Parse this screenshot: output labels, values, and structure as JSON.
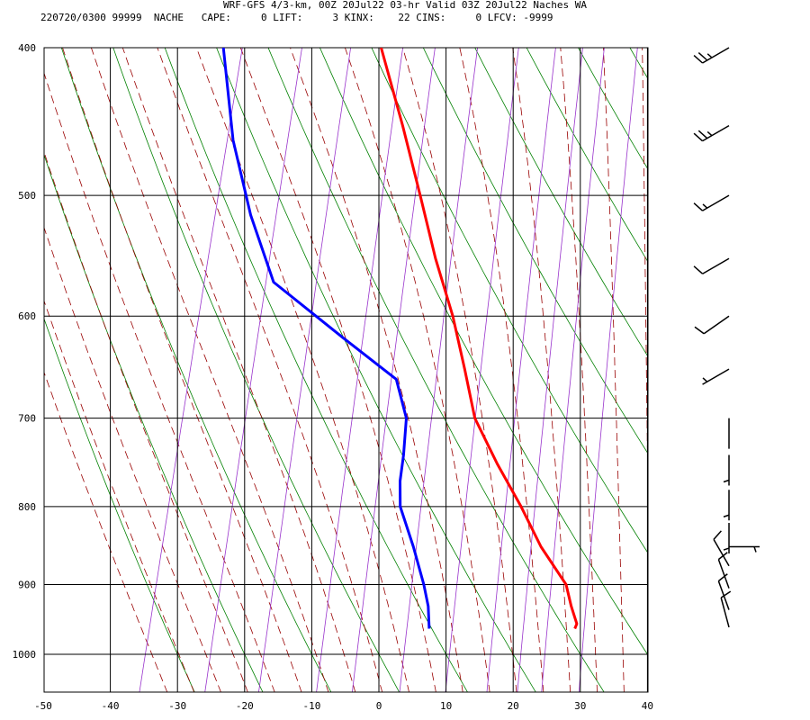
{
  "header": {
    "title": "WRF-GFS 4/3-km, 00Z 20Jul22 03-hr Valid 03Z 20Jul22 Naches WA",
    "info": "220720/0300 99999  NACHE   CAPE:     0 LIFT:     3 KINX:    22 CINS:     0 LFCV: -9999"
  },
  "colors": {
    "temperature": "#ff0000",
    "dewpoint": "#0000ff",
    "isotherm": "#000000",
    "isobar": "#000000",
    "dry_adiabat": "#008000",
    "moist_adiabat": "#990000",
    "mixing_ratio": "#9933cc",
    "wind_barb": "#000000"
  },
  "chart_data": {
    "type": "skew-t",
    "xlabel": "",
    "ylabel": "",
    "x_ticks": [
      -50,
      -40,
      -30,
      -20,
      -10,
      0,
      10,
      20,
      30,
      40
    ],
    "y_ticks": [
      400,
      500,
      600,
      700,
      800,
      900,
      1000
    ],
    "xlim": [
      -50,
      40
    ],
    "ylim": [
      1040,
      400
    ],
    "series": [
      {
        "key": "temperature",
        "points": [
          {
            "p": 962,
            "t": 28.2
          },
          {
            "p": 955,
            "t": 28.3
          },
          {
            "p": 930,
            "t": 26.8
          },
          {
            "p": 900,
            "t": 25.2
          },
          {
            "p": 850,
            "t": 20.0
          },
          {
            "p": 800,
            "t": 15.5
          },
          {
            "p": 750,
            "t": 10.3
          },
          {
            "p": 700,
            "t": 5.2
          },
          {
            "p": 650,
            "t": 1.8
          },
          {
            "p": 600,
            "t": -2.0
          },
          {
            "p": 550,
            "t": -6.8
          },
          {
            "p": 500,
            "t": -11.5
          },
          {
            "p": 450,
            "t": -16.8
          },
          {
            "p": 400,
            "t": -23.0
          }
        ]
      },
      {
        "key": "dewpoint",
        "points": [
          {
            "p": 962,
            "t": 6.5
          },
          {
            "p": 930,
            "t": 5.5
          },
          {
            "p": 900,
            "t": 4.0
          },
          {
            "p": 850,
            "t": 1.0
          },
          {
            "p": 800,
            "t": -2.5
          },
          {
            "p": 770,
            "t": -3.5
          },
          {
            "p": 740,
            "t": -4.0
          },
          {
            "p": 700,
            "t": -5.0
          },
          {
            "p": 660,
            "t": -8.0
          },
          {
            "p": 620,
            "t": -17.5
          },
          {
            "p": 570,
            "t": -30.0
          },
          {
            "p": 515,
            "t": -36.0
          },
          {
            "p": 460,
            "t": -41.5
          },
          {
            "p": 400,
            "t": -46.5
          }
        ]
      }
    ],
    "winds": [
      {
        "p": 960,
        "dir": 345,
        "speed": 10
      },
      {
        "p": 935,
        "dir": 340,
        "speed": 10
      },
      {
        "p": 905,
        "dir": 340,
        "speed": 10
      },
      {
        "p": 875,
        "dir": 330,
        "speed": 10
      },
      {
        "p": 850,
        "dir": 90,
        "speed": 5
      },
      {
        "p": 820,
        "dir": 180,
        "speed": 5
      },
      {
        "p": 780,
        "dir": 180,
        "speed": 5
      },
      {
        "p": 740,
        "dir": 180,
        "speed": 5
      },
      {
        "p": 700,
        "dir": 180,
        "speed": 0
      },
      {
        "p": 650,
        "dir": 240,
        "speed": 5
      },
      {
        "p": 600,
        "dir": 235,
        "speed": 10
      },
      {
        "p": 550,
        "dir": 240,
        "speed": 10
      },
      {
        "p": 500,
        "dir": 240,
        "speed": 15
      },
      {
        "p": 450,
        "dir": 240,
        "speed": 25
      },
      {
        "p": 400,
        "dir": 240,
        "speed": 25
      }
    ],
    "grid": true
  }
}
